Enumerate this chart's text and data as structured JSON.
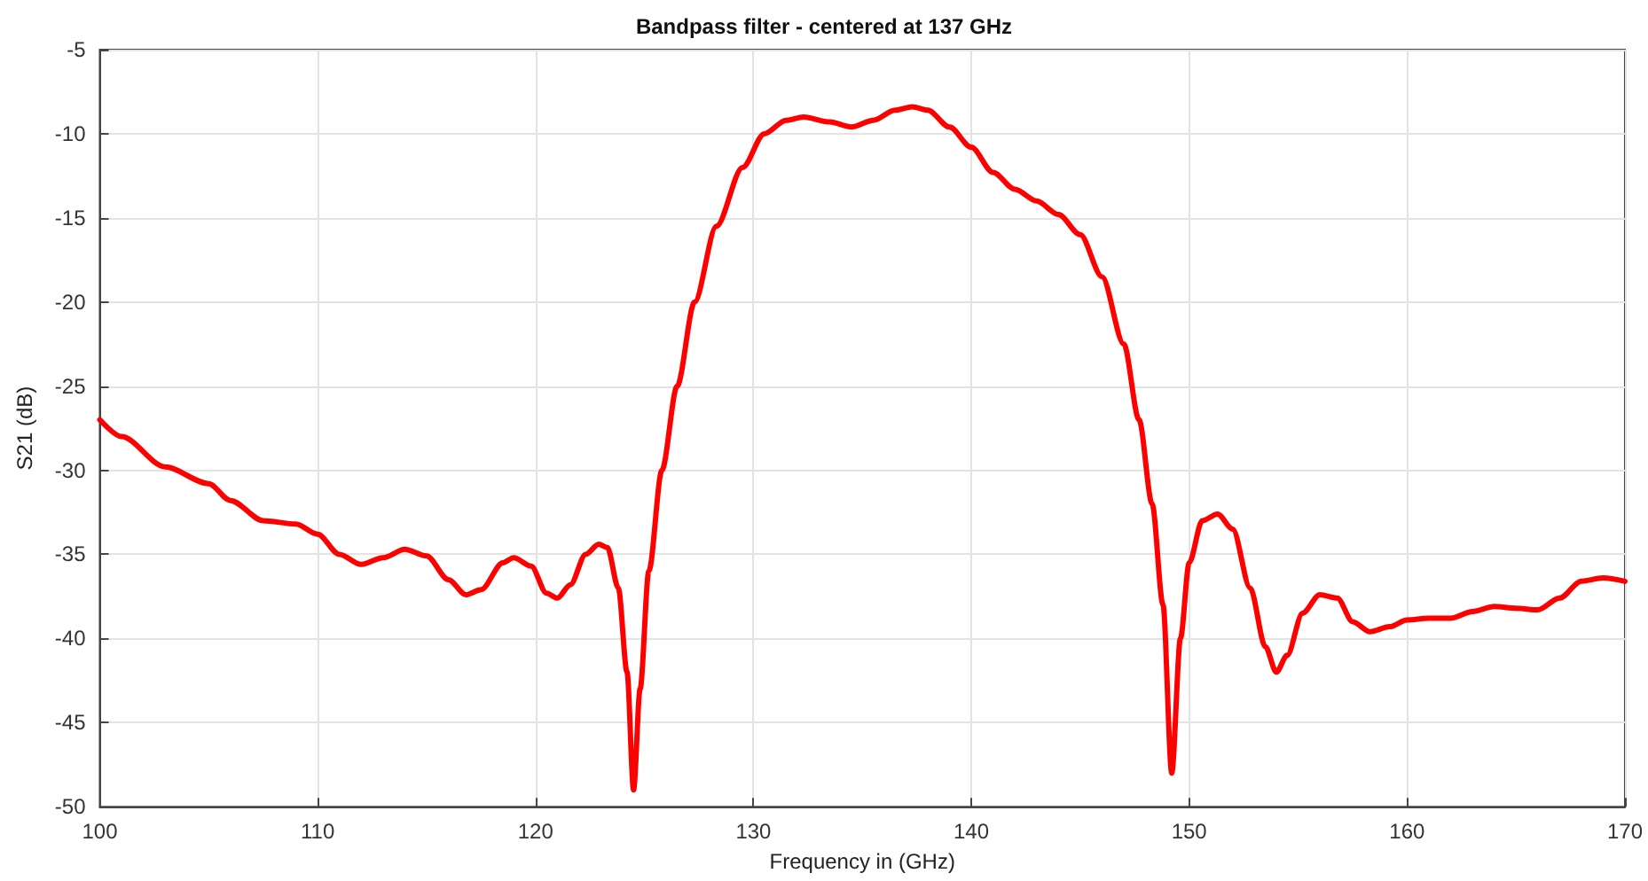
{
  "chart_data": {
    "type": "line",
    "title": "Bandpass filter - centered at 137 GHz",
    "xlabel": "Frequency in (GHz)",
    "ylabel": "S21 (dB)",
    "xlim": [
      100,
      170
    ],
    "xticks": [
      100,
      110,
      120,
      130,
      140,
      150,
      160,
      170
    ],
    "ylim": [
      -50,
      -5
    ],
    "yticks": [
      -50,
      -45,
      -40,
      -35,
      -30,
      -25,
      -20,
      -15,
      -10,
      -5
    ],
    "grid": true,
    "marker": "none",
    "line_style": "solid",
    "series": [
      {
        "color": "#ff0000",
        "x": [
          100,
          101,
          103,
          105,
          106,
          107.5,
          109,
          110,
          111,
          112,
          113,
          114,
          115,
          116,
          116.8,
          117.5,
          118.5,
          119,
          119.8,
          120.5,
          121,
          121.6,
          122.3,
          122.9,
          123.3,
          123.8,
          124.2,
          124.5,
          124.8,
          125.2,
          125.8,
          126.5,
          127.3,
          128.3,
          129.5,
          130.5,
          131.5,
          132.3,
          133.5,
          134.5,
          135.5,
          136.5,
          137.3,
          138,
          139,
          140,
          141,
          142,
          143,
          144,
          145,
          146,
          147,
          147.7,
          148.3,
          148.8,
          149.2,
          149.6,
          150,
          150.6,
          151.3,
          152,
          152.8,
          153.5,
          154,
          154.5,
          155.2,
          156,
          156.8,
          157.5,
          158.3,
          159.2,
          160,
          161,
          162,
          163,
          164,
          165,
          166,
          167,
          168,
          169,
          170
        ],
        "values": [
          -27,
          -28,
          -29.8,
          -30.8,
          -31.8,
          -33,
          -33.2,
          -33.8,
          -35,
          -35.6,
          -35.2,
          -34.7,
          -35.1,
          -36.5,
          -37.4,
          -37.1,
          -35.5,
          -35.2,
          -35.7,
          -37.3,
          -37.6,
          -36.8,
          -35,
          -34.4,
          -34.6,
          -37,
          -42,
          -49,
          -43,
          -36,
          -30,
          -25,
          -20,
          -15.5,
          -12,
          -10,
          -9.2,
          -9,
          -9.3,
          -9.6,
          -9.2,
          -8.6,
          -8.4,
          -8.6,
          -9.6,
          -10.8,
          -12.3,
          -13.3,
          -14,
          -14.8,
          -16,
          -18.5,
          -22.5,
          -27,
          -32,
          -38,
          -48,
          -40,
          -35.5,
          -33,
          -32.6,
          -33.5,
          -37,
          -40.5,
          -42,
          -41,
          -38.5,
          -37.4,
          -37.6,
          -39,
          -39.6,
          -39.3,
          -38.9,
          -38.8,
          -38.8,
          -38.4,
          -38.1,
          -38.2,
          -38.3,
          -37.6,
          -36.6,
          -36.4,
          -36.6
        ]
      }
    ]
  }
}
